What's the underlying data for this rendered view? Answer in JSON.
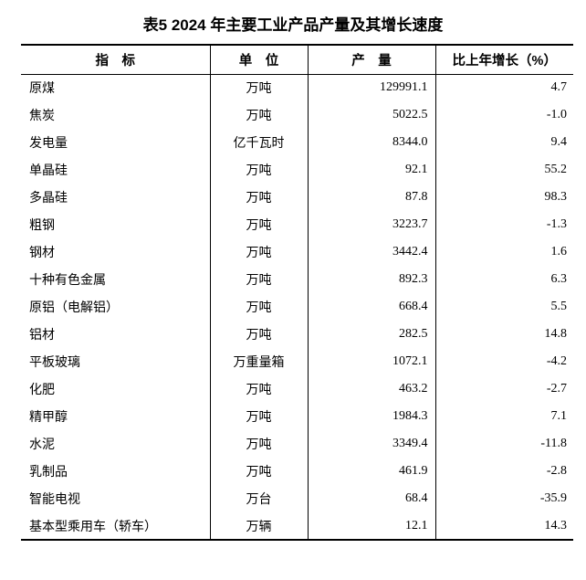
{
  "title": "表5 2024 年主要工业产品产量及其增长速度",
  "colors": {
    "text": "#000000",
    "background": "#ffffff",
    "border": "#000000"
  },
  "table": {
    "headers": {
      "indicator": "指　标",
      "unit": "单　位",
      "output": "产　量",
      "growth": "比上年增长（%）"
    },
    "rows": [
      {
        "indicator": "原煤",
        "unit": "万吨",
        "output": "129991.1",
        "growth": "4.7"
      },
      {
        "indicator": "焦炭",
        "unit": "万吨",
        "output": "5022.5",
        "growth": "-1.0"
      },
      {
        "indicator": "发电量",
        "unit": "亿千瓦时",
        "output": "8344.0",
        "growth": "9.4"
      },
      {
        "indicator": "单晶硅",
        "unit": "万吨",
        "output": "92.1",
        "growth": "55.2"
      },
      {
        "indicator": "多晶硅",
        "unit": "万吨",
        "output": "87.8",
        "growth": "98.3"
      },
      {
        "indicator": "粗钢",
        "unit": "万吨",
        "output": "3223.7",
        "growth": "-1.3"
      },
      {
        "indicator": "钢材",
        "unit": "万吨",
        "output": "3442.4",
        "growth": "1.6"
      },
      {
        "indicator": "十种有色金属",
        "unit": "万吨",
        "output": "892.3",
        "growth": "6.3"
      },
      {
        "indicator": "原铝（电解铝）",
        "unit": "万吨",
        "output": "668.4",
        "growth": "5.5"
      },
      {
        "indicator": "铝材",
        "unit": "万吨",
        "output": "282.5",
        "growth": "14.8"
      },
      {
        "indicator": "平板玻璃",
        "unit": "万重量箱",
        "output": "1072.1",
        "growth": "-4.2"
      },
      {
        "indicator": "化肥",
        "unit": "万吨",
        "output": "463.2",
        "growth": "-2.7"
      },
      {
        "indicator": "精甲醇",
        "unit": "万吨",
        "output": "1984.3",
        "growth": "7.1"
      },
      {
        "indicator": "水泥",
        "unit": "万吨",
        "output": "3349.4",
        "growth": "-11.8"
      },
      {
        "indicator": "乳制品",
        "unit": "万吨",
        "output": "461.9",
        "growth": "-2.8"
      },
      {
        "indicator": "智能电视",
        "unit": "万台",
        "output": "68.4",
        "growth": "-35.9"
      },
      {
        "indicator": "基本型乘用车（轿车）",
        "unit": "万辆",
        "output": "12.1",
        "growth": "14.3"
      }
    ]
  }
}
